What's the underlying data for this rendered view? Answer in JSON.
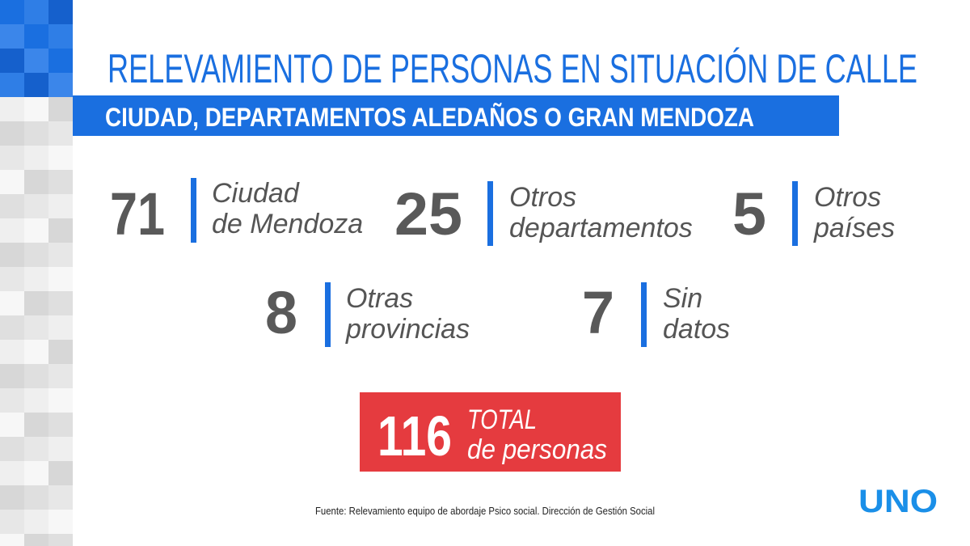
{
  "header": {
    "title": "RELEVAMIENTO DE PERSONAS EN SITUACIÓN DE CALLE",
    "subtitle": "CIUDAD, DEPARTAMENTOS ALEDAÑOS O GRAN MENDOZA"
  },
  "stats": [
    {
      "value": 71,
      "label": [
        "Ciudad",
        "de Mendoza"
      ]
    },
    {
      "value": 25,
      "label": [
        "Otros",
        "departamentos"
      ]
    },
    {
      "value": 5,
      "label": [
        "Otros",
        "países"
      ]
    },
    {
      "value": 8,
      "label": [
        "Otras",
        "provincias"
      ]
    },
    {
      "value": 7,
      "label": [
        "Sin",
        "datos"
      ]
    }
  ],
  "total": {
    "value": 116,
    "label": [
      "TOTAL",
      "de personas"
    ]
  },
  "source": "Fuente: Relevamiento equipo de abordaje Psico social. Dirección de Gestión Social",
  "logo": "UNO"
}
